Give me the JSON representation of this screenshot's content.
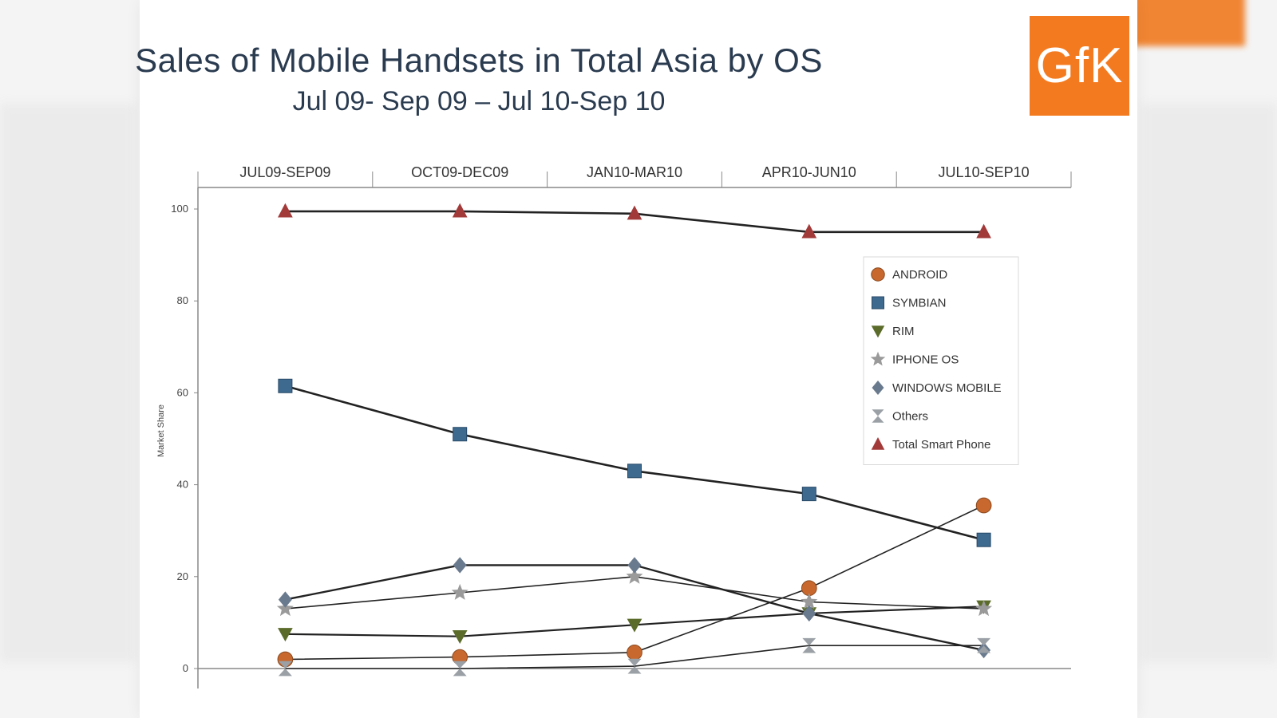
{
  "branding": {
    "logo_text": "GfK",
    "logo_color": "#f47a1f"
  },
  "chart_data": {
    "type": "line",
    "title": "Sales of Mobile Handsets in Total Asia by OS",
    "subtitle": "Jul 09- Sep 09 – Jul 10-Sep 10",
    "ylabel": "Market Share",
    "xlabel": "",
    "categories": [
      "JUL09-SEP09",
      "OCT09-DEC09",
      "JAN10-MAR10",
      "APR10-JUN10",
      "JUL10-SEP10"
    ],
    "ylim": [
      0,
      100
    ],
    "yticks": [
      0,
      20,
      40,
      60,
      80,
      100
    ],
    "grid": false,
    "legend_position": "top-right",
    "series": [
      {
        "name": "ANDROID",
        "values": [
          2,
          2.5,
          3.5,
          17.5,
          35.5
        ],
        "color": "#c8682e",
        "marker": "circle"
      },
      {
        "name": "SYMBIAN",
        "values": [
          61.5,
          51,
          43,
          38,
          28
        ],
        "color": "#3d6a8e",
        "marker": "square"
      },
      {
        "name": "RIM",
        "values": [
          7.5,
          7,
          9.5,
          12,
          13.5
        ],
        "color": "#5a6b2a",
        "marker": "triangle-down"
      },
      {
        "name": "IPHONE OS",
        "values": [
          13,
          16.5,
          20,
          14.5,
          13
        ],
        "color": "#9a9a9a",
        "marker": "star"
      },
      {
        "name": "WINDOWS MOBILE",
        "values": [
          15,
          22.5,
          22.5,
          12,
          4
        ],
        "color": "#6a7a8e",
        "marker": "diamond"
      },
      {
        "name": "Others",
        "values": [
          0,
          0,
          0.5,
          5,
          5
        ],
        "color": "#9aa0a6",
        "marker": "hourglass"
      },
      {
        "name": "Total Smart Phone",
        "values": [
          99.5,
          99.5,
          99,
          95,
          95
        ],
        "color": "#a33a3a",
        "marker": "triangle-up"
      }
    ]
  }
}
